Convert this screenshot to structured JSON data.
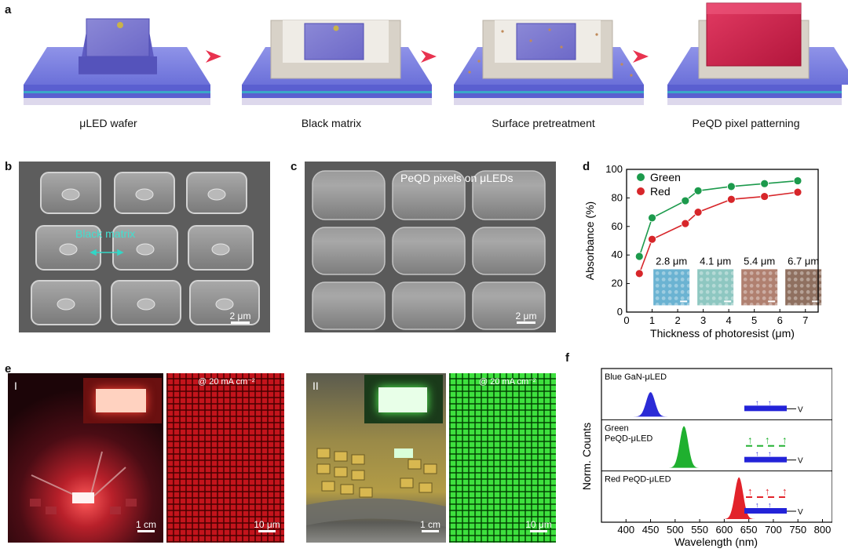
{
  "figure": {
    "panel_labels": [
      "a",
      "b",
      "c",
      "d",
      "e",
      "f"
    ],
    "a": {
      "steps": [
        "μLED wafer",
        "Black matrix",
        "Surface pretreatment",
        "PeQD pixel patterning"
      ]
    },
    "b": {
      "annotation": "Black matrix",
      "scale": "2 μm"
    },
    "c": {
      "caption": "PeQD pixels on μLEDs",
      "scale": "2 μm"
    },
    "e": {
      "left": {
        "roman": "I",
        "current": "@ 20 mA cm⁻²",
        "scale_photo": "1 cm",
        "scale_micro": "10 μm"
      },
      "right": {
        "roman": "II",
        "current": "@ 20 mA cm⁻²",
        "scale_photo": "1 cm",
        "scale_micro": "10 μm"
      }
    },
    "f": {
      "rows": [
        {
          "label": "Blue GaN-μLED",
          "label2": "",
          "color": "#2b2bd6",
          "peak": 450
        },
        {
          "label": "Green",
          "label2": "PeQD-μLED",
          "color": "#1fb02f",
          "peak": 518
        },
        {
          "label": "Red PeQD-μLED",
          "label2": "",
          "color": "#e2222a",
          "peak": 630
        }
      ],
      "device_v": "V",
      "ylabel": "Norm. Counts",
      "xlabel": "Wavelength (nm)",
      "xticks": [
        "400",
        "450",
        "500",
        "550",
        "600",
        "650",
        "700",
        "750",
        "800"
      ]
    }
  },
  "chart_data": {
    "type": "line",
    "title": "",
    "xlabel": "Thickness of photoresist (μm)",
    "ylabel": "Absorbance (%)",
    "xlim": [
      0,
      7.5
    ],
    "ylim": [
      0,
      100
    ],
    "xticks": [
      0,
      1,
      2,
      3,
      4,
      5,
      6,
      7
    ],
    "yticks": [
      0,
      20,
      40,
      60,
      80,
      100
    ],
    "legend_position": "top-left",
    "series": [
      {
        "name": "Green",
        "color": "#1c9a4c",
        "x": [
          0.5,
          1.0,
          2.3,
          2.8,
          4.1,
          5.4,
          6.7
        ],
        "y": [
          39,
          66,
          78,
          85,
          88,
          90,
          92
        ]
      },
      {
        "name": "Red",
        "color": "#d7262a",
        "x": [
          0.5,
          1.0,
          2.3,
          2.8,
          4.1,
          5.4,
          6.7
        ],
        "y": [
          27,
          51,
          62,
          70,
          79,
          81,
          84
        ]
      }
    ],
    "insets": [
      {
        "label": "2.8 μm",
        "color": "#6bb3d2"
      },
      {
        "label": "4.1 μm",
        "color": "#8ec7c1"
      },
      {
        "label": "5.4 μm",
        "color": "#b08070"
      },
      {
        "label": "6.7 μm",
        "color": "#8f7060"
      }
    ]
  }
}
